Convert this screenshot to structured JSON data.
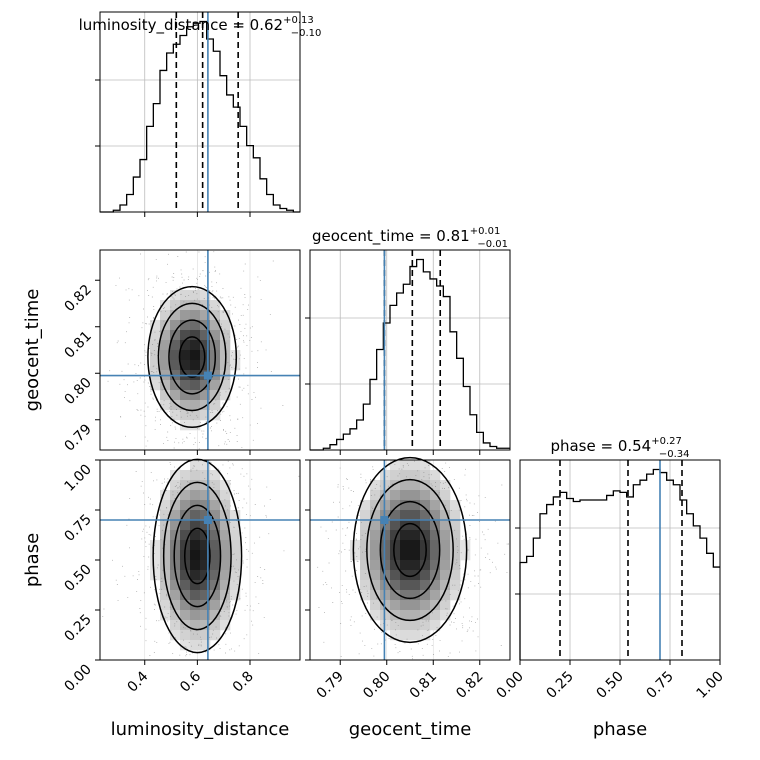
{
  "chart_data": {
    "type": "corner",
    "parameters": [
      "luminosity_distance",
      "geocent_time",
      "phase"
    ],
    "axis_labels": {
      "x": [
        "luminosity_distance",
        "geocent_time",
        "phase"
      ],
      "y": [
        "geocent_time",
        "phase"
      ]
    },
    "truths": {
      "luminosity_distance": 0.64,
      "geocent_time": 0.7995,
      "phase": 0.7
    },
    "ranges": {
      "luminosity_distance": [
        0.23,
        0.99
      ],
      "geocent_time": [
        0.7835,
        0.8265
      ],
      "phase": [
        0.0,
        1.0
      ]
    },
    "ticks": {
      "luminosity_distance": {
        "values": [
          0.4,
          0.6,
          0.8
        ],
        "labels": [
          "0.4",
          "0.6",
          "0.8"
        ]
      },
      "geocent_time": {
        "values": [
          0.79,
          0.8,
          0.81,
          0.82
        ],
        "labels": [
          "0.79",
          "0.80",
          "0.81",
          "0.82"
        ]
      },
      "phase": {
        "values": [
          0.0,
          0.25,
          0.5,
          0.75,
          1.0
        ],
        "labels": [
          "0.00",
          "0.25",
          "0.50",
          "0.75",
          "1.00"
        ]
      }
    },
    "diagonal": [
      {
        "param": "luminosity_distance",
        "title": {
          "name": "luminosity_distance",
          "median": "0.62",
          "plus": "+0.13",
          "minus": "−0.10"
        },
        "quantiles": [
          0.52,
          0.62,
          0.755
        ],
        "bin_edges": [
          0.23,
          0.2553,
          0.2807,
          0.306,
          0.3313,
          0.3567,
          0.382,
          0.4073,
          0.4327,
          0.458,
          0.4833,
          0.5087,
          0.534,
          0.5593,
          0.5847,
          0.61,
          0.6353,
          0.6607,
          0.686,
          0.7113,
          0.7367,
          0.762,
          0.7873,
          0.8127,
          0.838,
          0.8633,
          0.8887,
          0.914,
          0.9393,
          0.9647,
          0.99
        ],
        "counts": [
          0,
          0,
          1,
          4,
          10,
          20,
          30,
          49,
          62,
          81,
          91,
          96,
          101,
          106,
          108,
          109,
          99,
          92,
          78,
          67,
          60,
          49,
          38,
          31,
          19,
          10,
          4,
          2,
          1,
          0
        ]
      },
      {
        "param": "geocent_time",
        "title": {
          "name": "geocent_time",
          "median": "0.81",
          "plus": "+0.01",
          "minus": "−0.01"
        },
        "quantiles": [
          0.7995,
          0.8055,
          0.8115
        ],
        "bin_edges": [
          0.7835,
          0.78493,
          0.78637,
          0.7878,
          0.78923,
          0.79067,
          0.7921,
          0.79353,
          0.79497,
          0.7964,
          0.79783,
          0.79927,
          0.8007,
          0.80213,
          0.80357,
          0.805,
          0.80643,
          0.80787,
          0.8093,
          0.81073,
          0.81217,
          0.8136,
          0.81503,
          0.81647,
          0.8179,
          0.81933,
          0.82077,
          0.8222,
          0.82363,
          0.82507,
          0.8265
        ],
        "counts": [
          0,
          0,
          1,
          3,
          6,
          9,
          12,
          17,
          26,
          40,
          57,
          72,
          82,
          89,
          94,
          104,
          108,
          101,
          97,
          93,
          87,
          67,
          52,
          36,
          20,
          10,
          4,
          2,
          1,
          1
        ]
      },
      {
        "param": "phase",
        "title": {
          "name": "phase",
          "median": "0.54",
          "plus": "+0.27",
          "minus": "−0.34"
        },
        "quantiles": [
          0.2,
          0.54,
          0.81
        ],
        "bin_edges": [
          0.0,
          0.0333,
          0.0667,
          0.1,
          0.1333,
          0.1667,
          0.2,
          0.2333,
          0.2667,
          0.3,
          0.3333,
          0.3667,
          0.4,
          0.4333,
          0.4667,
          0.5,
          0.5333,
          0.5667,
          0.6,
          0.6333,
          0.6667,
          0.7,
          0.7333,
          0.7667,
          0.8,
          0.8333,
          0.8667,
          0.9,
          0.9333,
          0.9667,
          1.0
        ],
        "counts": [
          64,
          68,
          80,
          96,
          102,
          107,
          110,
          106,
          104,
          105,
          105,
          105,
          105,
          108,
          111,
          110,
          107,
          115,
          118,
          122,
          125,
          123,
          118,
          115,
          105,
          96,
          88,
          80,
          70,
          61
        ]
      }
    ],
    "pairs": [
      {
        "x": "luminosity_distance",
        "y": "geocent_time",
        "peak": [
          0.58,
          0.8035
        ],
        "spread": [
          0.08,
          0.0072
        ]
      },
      {
        "x": "luminosity_distance",
        "y": "phase",
        "peak": [
          0.6,
          0.52
        ],
        "spread": [
          0.08,
          0.23
        ]
      },
      {
        "x": "geocent_time",
        "y": "phase",
        "peak": [
          0.805,
          0.55
        ],
        "spread": [
          0.0058,
          0.22
        ]
      }
    ],
    "grid": true
  }
}
